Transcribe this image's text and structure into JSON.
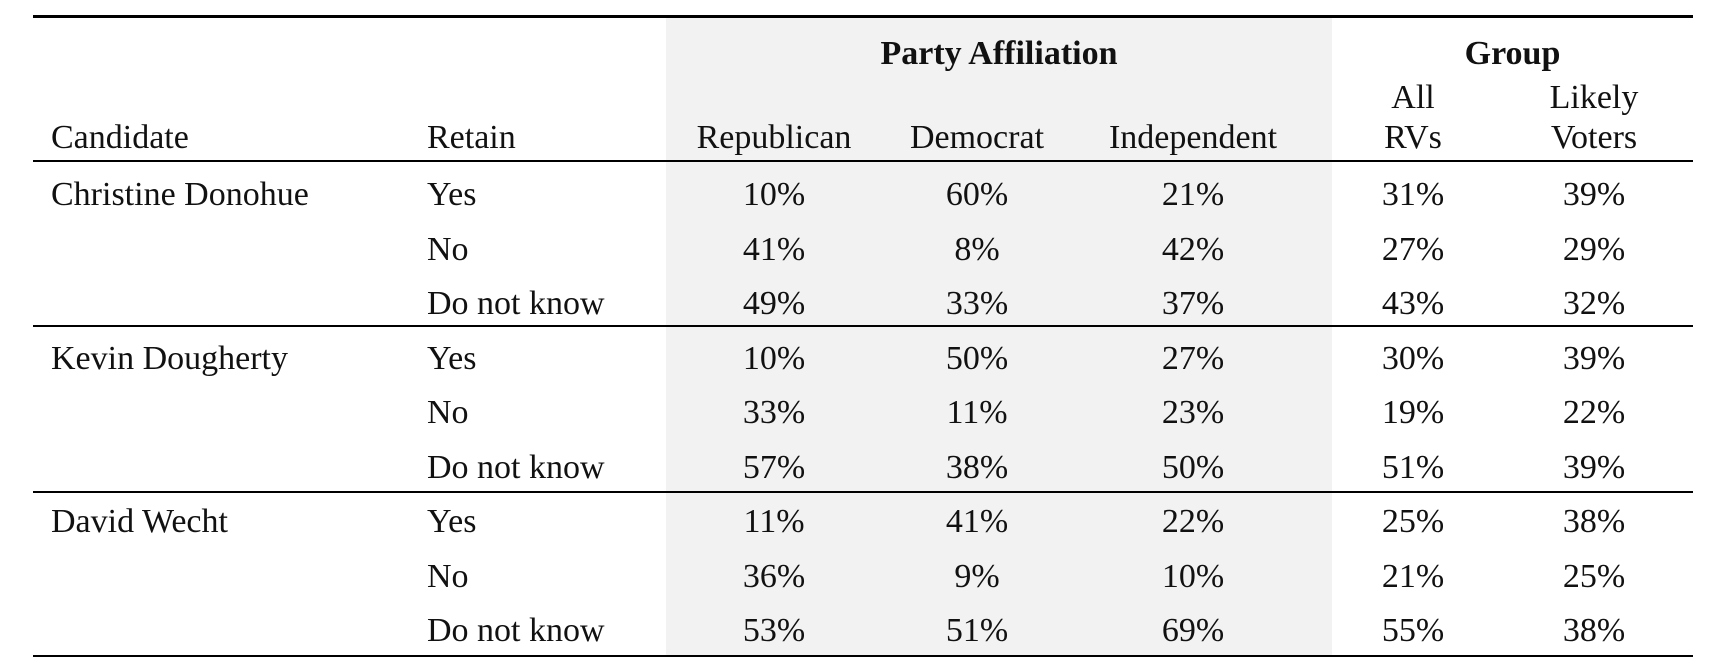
{
  "table": {
    "header": {
      "groups": [
        "Party Affiliation",
        "Group"
      ],
      "columns": [
        "Candidate",
        "Retain",
        "Republican",
        "Democrat",
        "Independent",
        "All RVs",
        "Likely Voters"
      ]
    },
    "blocks": [
      {
        "candidate": "Christine Donohue",
        "rows": [
          [
            "Yes",
            "10%",
            "60%",
            "21%",
            "31%",
            "39%"
          ],
          [
            "No",
            "41%",
            "8%",
            "42%",
            "27%",
            "29%"
          ],
          [
            "Do not know",
            "49%",
            "33%",
            "37%",
            "43%",
            "32%"
          ]
        ]
      },
      {
        "candidate": "Kevin Dougherty",
        "rows": [
          [
            "Yes",
            "10%",
            "50%",
            "27%",
            "30%",
            "39%"
          ],
          [
            "No",
            "33%",
            "11%",
            "23%",
            "19%",
            "22%"
          ],
          [
            "Do not know",
            "57%",
            "38%",
            "50%",
            "51%",
            "39%"
          ]
        ]
      },
      {
        "candidate": "David Wecht",
        "rows": [
          [
            "Yes",
            "11%",
            "41%",
            "22%",
            "25%",
            "38%"
          ],
          [
            "No",
            "36%",
            "9%",
            "10%",
            "21%",
            "25%"
          ],
          [
            "Do not know",
            "53%",
            "51%",
            "69%",
            "55%",
            "38%"
          ]
        ]
      }
    ]
  }
}
